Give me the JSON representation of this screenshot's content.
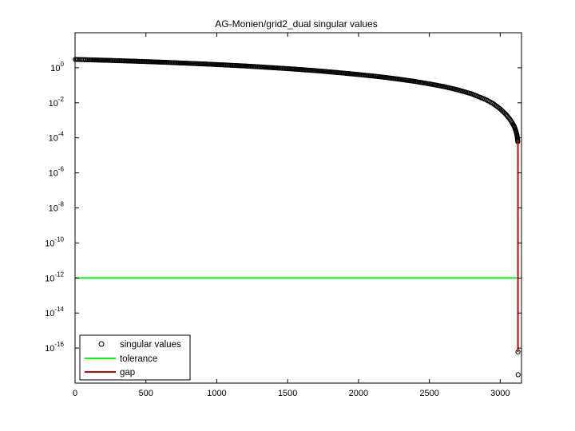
{
  "chart_data": {
    "type": "scatter",
    "title": "AG-Monien/grid2_dual singular values",
    "xlabel": "",
    "ylabel": "",
    "xlim": [
      0,
      3150
    ],
    "ylim": [
      1e-18,
      100.0
    ],
    "yscale": "log",
    "grid": false,
    "legend_position": "bottom-left",
    "x_ticks": [
      0,
      500,
      1000,
      1500,
      2000,
      2500,
      3000
    ],
    "x_tick_labels": [
      "0",
      "500",
      "1000",
      "1500",
      "2000",
      "2500",
      "3000"
    ],
    "y_ticks": [
      {
        "base": "10",
        "exp": "0",
        "value": 1
      },
      {
        "base": "10",
        "exp": "-2",
        "value": 0.01
      },
      {
        "base": "10",
        "exp": "-4",
        "value": 0.0001
      },
      {
        "base": "10",
        "exp": "-6",
        "value": 1e-06
      },
      {
        "base": "10",
        "exp": "-8",
        "value": 1e-08
      },
      {
        "base": "10",
        "exp": "-10",
        "value": 1e-10
      },
      {
        "base": "10",
        "exp": "-12",
        "value": 1e-12
      },
      {
        "base": "10",
        "exp": "-14",
        "value": 1e-14
      },
      {
        "base": "10",
        "exp": "-16",
        "value": 1e-16
      }
    ],
    "series": [
      {
        "name": "singular values",
        "kind": "markers",
        "color": "#000000",
        "x": [
          1,
          100,
          200,
          300,
          400,
          500,
          600,
          700,
          800,
          900,
          1000,
          1100,
          1200,
          1300,
          1400,
          1500,
          1600,
          1700,
          1800,
          1900,
          2000,
          2100,
          2200,
          2300,
          2400,
          2500,
          2600,
          2700,
          2800,
          2900,
          2950,
          3000,
          3040,
          3070,
          3090,
          3100,
          3105,
          3110,
          3115,
          3120,
          3124,
          3125,
          3126
        ],
        "y": [
          3.0,
          2.85,
          2.7,
          2.55,
          2.4,
          2.25,
          2.1,
          1.95,
          1.8,
          1.66,
          1.52,
          1.39,
          1.26,
          1.13,
          1.0,
          0.89,
          0.78,
          0.68,
          0.58,
          0.49,
          0.41,
          0.34,
          0.275,
          0.215,
          0.165,
          0.12,
          0.085,
          0.055,
          0.032,
          0.015,
          0.009,
          0.0045,
          0.0022,
          0.0011,
          0.0006,
          0.00042,
          0.00033,
          0.00025,
          0.00018,
          0.00012,
          6e-05,
          6e-17,
          3e-18
        ]
      },
      {
        "name": "tolerance",
        "kind": "line",
        "color": "#00ff00",
        "x": [
          1,
          3126
        ],
        "y": [
          1e-12,
          1e-12
        ]
      },
      {
        "name": "gap",
        "kind": "line",
        "color": "#cc0000",
        "x": [
          3125,
          3125
        ],
        "y": [
          6e-05,
          6e-17
        ]
      }
    ],
    "colors": {
      "axes": "#000000",
      "background": "#ffffff"
    }
  }
}
